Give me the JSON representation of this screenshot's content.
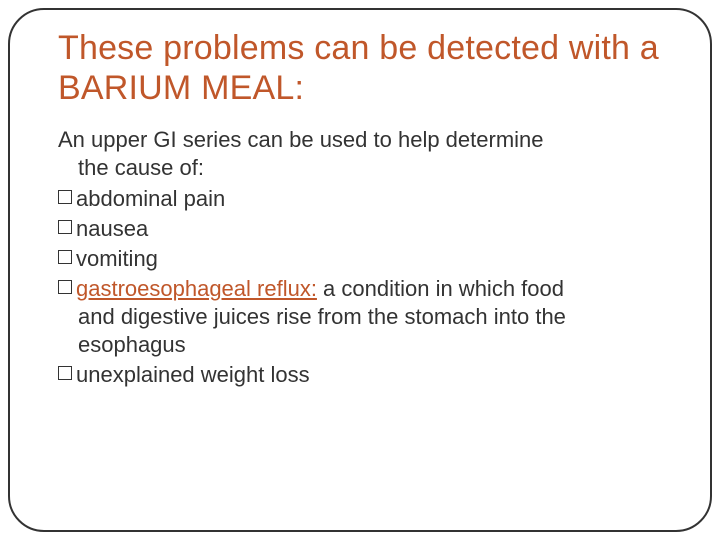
{
  "colors": {
    "accent": "#c0572a",
    "text": "#333333",
    "border": "#333333",
    "background": "#ffffff"
  },
  "typography": {
    "title_fontsize": 34,
    "body_fontsize": 22,
    "font_family": "Arial"
  },
  "title": {
    "line": "These problems can be detected with a ",
    "highlight": "BARIUM MEAL:"
  },
  "lead": {
    "l1": "An upper GI series can be used to help determine",
    "l2": "the cause of:"
  },
  "bullets": {
    "b1": "abdominal pain",
    "b2": "nausea",
    "b3": "vomiting",
    "b4_link": "gastroesophageal reflux:",
    "b4_rest": " a condition in which food",
    "b4_cont1": "and digestive juices rise from the stomach into the",
    "b4_cont2": "esophagus",
    "b5": "unexplained weight loss"
  }
}
